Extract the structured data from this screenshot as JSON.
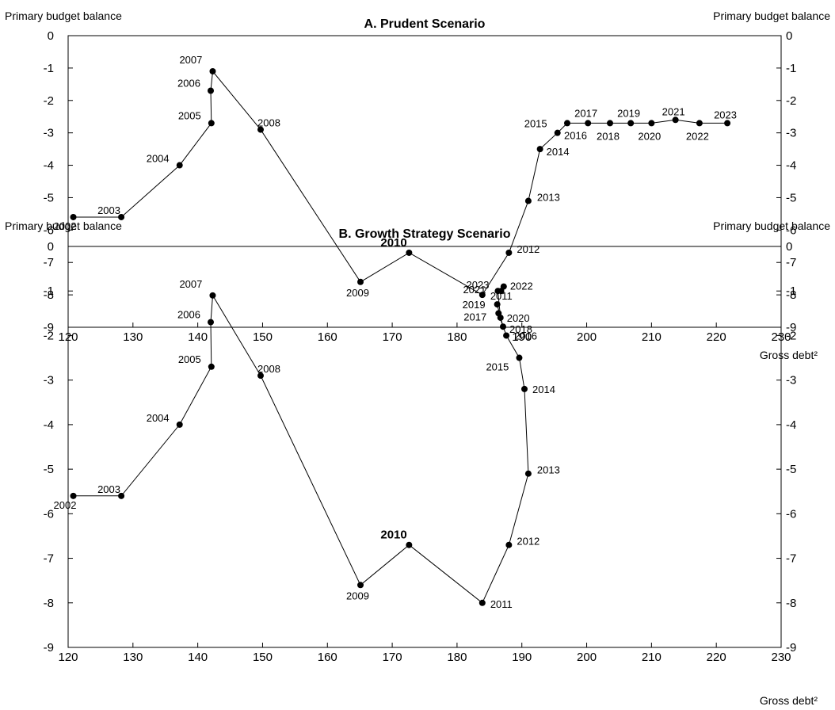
{
  "chart_data": [
    {
      "type": "line",
      "title": "A. Prudent Scenario",
      "ylabel_left": "Primary budget balance",
      "ylabel_right": "Primary budget balance",
      "xlabel": "Gross debt²",
      "xlim": [
        120,
        230
      ],
      "ylim": [
        -9,
        0
      ],
      "xticks": [
        120,
        130,
        140,
        150,
        160,
        170,
        180,
        190,
        200,
        210,
        220,
        230
      ],
      "yticks": [
        0,
        -1,
        -2,
        -3,
        -4,
        -5,
        -6,
        -7,
        -8,
        -9
      ],
      "grid": false,
      "points": [
        {
          "year": "2002",
          "x": 120.8,
          "y": -5.6
        },
        {
          "year": "2003",
          "x": 128.2,
          "y": -5.6
        },
        {
          "year": "2004",
          "x": 137.2,
          "y": -4.0
        },
        {
          "year": "2005",
          "x": 142.1,
          "y": -2.7
        },
        {
          "year": "2006",
          "x": 142.0,
          "y": -1.7
        },
        {
          "year": "2007",
          "x": 142.3,
          "y": -1.1
        },
        {
          "year": "2008",
          "x": 149.7,
          "y": -2.9
        },
        {
          "year": "2009",
          "x": 165.1,
          "y": -7.6
        },
        {
          "year": "2010",
          "x": 172.6,
          "y": -6.7,
          "bold": true
        },
        {
          "year": "2011",
          "x": 183.9,
          "y": -8.0
        },
        {
          "year": "2012",
          "x": 188.0,
          "y": -6.7
        },
        {
          "year": "2013",
          "x": 191.0,
          "y": -5.1
        },
        {
          "year": "2014",
          "x": 192.8,
          "y": -3.5
        },
        {
          "year": "2015",
          "x": 195.5,
          "y": -3.0
        },
        {
          "year": "2016",
          "x": 197.0,
          "y": -2.7
        },
        {
          "year": "2017",
          "x": 200.2,
          "y": -2.7
        },
        {
          "year": "2018",
          "x": 203.6,
          "y": -2.7
        },
        {
          "year": "2019",
          "x": 206.8,
          "y": -2.7
        },
        {
          "year": "2020",
          "x": 210.0,
          "y": -2.7
        },
        {
          "year": "2021",
          "x": 213.7,
          "y": -2.6
        },
        {
          "year": "2022",
          "x": 217.4,
          "y": -2.7
        },
        {
          "year": "2023",
          "x": 221.7,
          "y": -2.7
        }
      ]
    },
    {
      "type": "line",
      "title": "B. Growth Strategy Scenario",
      "ylabel_left": "Primary budget balance",
      "ylabel_right": "Primary budget balance",
      "xlabel": "Gross debt²",
      "xlim": [
        120,
        230
      ],
      "ylim": [
        -9,
        0
      ],
      "xticks": [
        120,
        130,
        140,
        150,
        160,
        170,
        180,
        190,
        200,
        210,
        220,
        230
      ],
      "yticks": [
        0,
        -1,
        -2,
        -3,
        -4,
        -5,
        -6,
        -7,
        -8,
        -9
      ],
      "grid": false,
      "points": [
        {
          "year": "2002",
          "x": 120.8,
          "y": -5.6
        },
        {
          "year": "2003",
          "x": 128.2,
          "y": -5.6
        },
        {
          "year": "2004",
          "x": 137.2,
          "y": -4.0
        },
        {
          "year": "2005",
          "x": 142.1,
          "y": -2.7
        },
        {
          "year": "2006",
          "x": 142.0,
          "y": -1.7
        },
        {
          "year": "2007",
          "x": 142.3,
          "y": -1.1
        },
        {
          "year": "2008",
          "x": 149.7,
          "y": -2.9
        },
        {
          "year": "2009",
          "x": 165.1,
          "y": -7.6
        },
        {
          "year": "2010",
          "x": 172.6,
          "y": -6.7,
          "bold": true
        },
        {
          "year": "2011",
          "x": 183.9,
          "y": -8.0
        },
        {
          "year": "2012",
          "x": 188.0,
          "y": -6.7
        },
        {
          "year": "2013",
          "x": 191.0,
          "y": -5.1
        },
        {
          "year": "2014",
          "x": 190.4,
          "y": -3.2
        },
        {
          "year": "2015",
          "x": 189.6,
          "y": -2.5
        },
        {
          "year": "2016",
          "x": 187.6,
          "y": -2.0
        },
        {
          "year": "2017",
          "x": 186.4,
          "y": -1.5
        },
        {
          "year": "2018",
          "x": 187.1,
          "y": -1.8
        },
        {
          "year": "2019",
          "x": 186.2,
          "y": -1.3
        },
        {
          "year": "2020",
          "x": 186.7,
          "y": -1.6
        },
        {
          "year": "2021",
          "x": 186.3,
          "y": -1.0
        },
        {
          "year": "2022",
          "x": 187.2,
          "y": -0.9
        },
        {
          "year": "2023",
          "x": 186.8,
          "y": -1.0
        }
      ]
    }
  ]
}
